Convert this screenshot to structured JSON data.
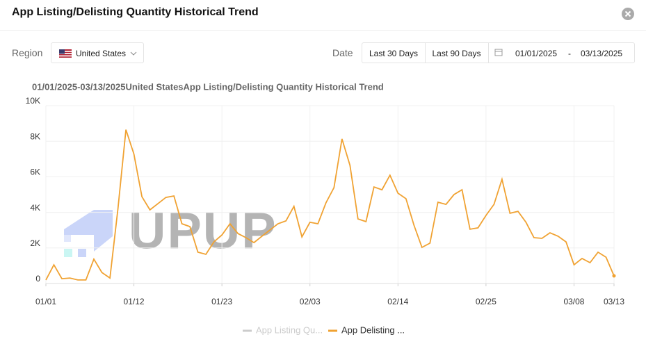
{
  "header": {
    "title": "App Listing/Delisting Quantity Historical Trend"
  },
  "filters": {
    "region_label": "Region",
    "region": "United States",
    "date_label": "Date",
    "buttons": [
      "Last 30 Days",
      "Last 90 Days"
    ],
    "start_date": "01/01/2025",
    "separator": "-",
    "end_date": "03/13/2025"
  },
  "watermark": "UPUP",
  "chart_data": {
    "type": "line",
    "title": "01/01/2025-03/13/2025United StatesApp Listing/Delisting Quantity Historical Trend",
    "categories": [
      "01/01",
      null,
      null,
      null,
      null,
      null,
      null,
      null,
      null,
      null,
      null,
      "01/12",
      null,
      null,
      null,
      null,
      null,
      null,
      null,
      null,
      null,
      null,
      "01/23",
      null,
      null,
      null,
      null,
      null,
      null,
      null,
      null,
      null,
      null,
      "02/03",
      null,
      null,
      null,
      null,
      null,
      null,
      null,
      null,
      null,
      null,
      "02/14",
      null,
      null,
      null,
      null,
      null,
      null,
      null,
      null,
      null,
      null,
      "02/25",
      null,
      null,
      null,
      null,
      null,
      null,
      null,
      null,
      null,
      null,
      "03/08",
      null,
      null,
      null,
      null,
      "03/13"
    ],
    "series": [
      {
        "name": "App Listing Qu...",
        "color": "#cccccc",
        "hidden": true,
        "values": [
          null,
          null,
          null,
          null,
          null,
          null,
          null,
          null,
          null,
          null,
          null,
          null,
          null,
          null,
          null,
          null,
          null,
          null,
          null,
          null,
          null,
          null,
          null,
          null,
          null,
          null,
          null,
          null,
          null,
          null,
          null,
          null,
          null,
          null,
          null,
          null,
          null,
          null,
          null,
          null,
          null,
          null,
          null,
          null,
          null,
          null,
          null,
          null,
          null,
          null,
          null,
          null,
          null,
          null,
          null,
          null,
          null,
          null,
          null,
          null,
          null,
          null,
          null,
          null,
          null,
          null,
          null,
          null,
          null,
          null,
          null,
          null
        ]
      },
      {
        "name": "App Delisting ...",
        "color": "#f0a232",
        "values": [
          200,
          1050,
          270,
          310,
          200,
          200,
          1370,
          620,
          310,
          4200,
          8650,
          7270,
          4880,
          4140,
          4490,
          4840,
          4920,
          3360,
          3200,
          1760,
          1640,
          2340,
          2730,
          3360,
          2810,
          2580,
          2300,
          2660,
          3010,
          3360,
          3520,
          4340,
          2620,
          3440,
          3360,
          4530,
          5390,
          8130,
          6640,
          3630,
          3480,
          5430,
          5270,
          6090,
          5080,
          4770,
          3280,
          2030,
          2270,
          4570,
          4450,
          5000,
          5270,
          3050,
          3130,
          3830,
          4450,
          5860,
          3950,
          4060,
          3440,
          2580,
          2540,
          2850,
          2660,
          2340,
          1050,
          1410,
          1170,
          1760,
          1480,
          430
        ]
      }
    ],
    "ylim": [
      0,
      10000
    ],
    "yticks": [
      0,
      {
        "value": 2000,
        "label": "2K"
      },
      {
        "value": 4000,
        "label": "4K"
      },
      {
        "value": 6000,
        "label": "6K"
      },
      {
        "value": 8000,
        "label": "8K"
      },
      {
        "value": 10000,
        "label": "10K"
      }
    ],
    "grid": true,
    "legend": "bottom"
  }
}
